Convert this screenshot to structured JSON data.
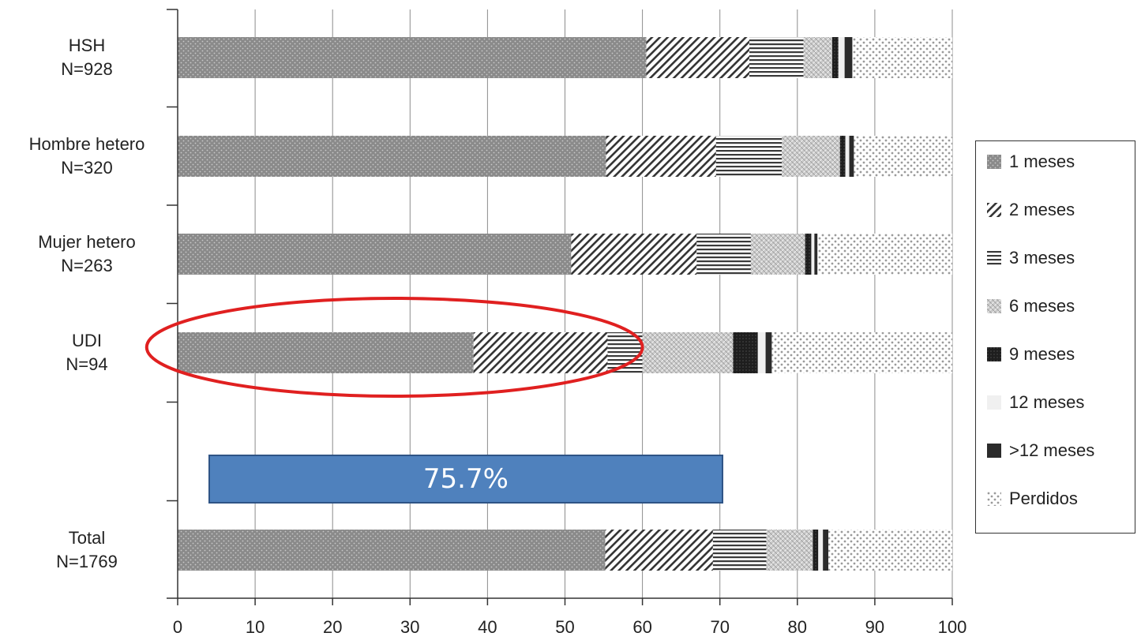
{
  "chart_data": {
    "type": "bar",
    "orientation": "horizontal",
    "stacked": true,
    "categories": [
      {
        "name": "HSH",
        "n": "N=928"
      },
      {
        "name": "Hombre hetero",
        "n": "N=320"
      },
      {
        "name": "Mujer hetero",
        "n": "N=263"
      },
      {
        "name": "UDI",
        "n": "N=94"
      },
      {
        "name": "",
        "n": ""
      },
      {
        "name": "Total",
        "n": "N=1769"
      }
    ],
    "series": [
      {
        "name": "1 meses",
        "values": [
          60.5,
          55.3,
          50.8,
          38.2,
          null,
          55.2
        ]
      },
      {
        "name": "2 meses",
        "values": [
          13.3,
          14.2,
          16.2,
          17.3,
          null,
          13.9
        ]
      },
      {
        "name": "3 meses",
        "values": [
          7.0,
          8.5,
          7.0,
          4.5,
          null,
          6.9
        ]
      },
      {
        "name": "6 meses",
        "values": [
          3.7,
          7.5,
          7.0,
          11.7,
          null,
          6.0
        ]
      },
      {
        "name": "9 meses",
        "values": [
          0.8,
          0.7,
          0.8,
          3.2,
          null,
          0.7
        ]
      },
      {
        "name": "12 meses",
        "values": [
          0.8,
          0.5,
          0.4,
          1.0,
          null,
          0.6
        ]
      },
      {
        "name": ">12 meses",
        "values": [
          1.0,
          0.6,
          0.4,
          0.8,
          null,
          0.7
        ]
      },
      {
        "name": "Perdidos",
        "values": [
          12.9,
          12.7,
          17.4,
          23.3,
          null,
          16.0
        ]
      }
    ],
    "xlim": [
      0,
      100
    ],
    "xticks": [
      0,
      10,
      20,
      30,
      40,
      50,
      60,
      70,
      80,
      90,
      100
    ],
    "grid": "vertical",
    "legend_position": "right",
    "annotations": [
      {
        "type": "ellipse",
        "color": "#e02020",
        "target": "UDI",
        "x_range": [
          -4,
          60
        ]
      },
      {
        "type": "box",
        "text": "75.7%",
        "color": "#4f81bd",
        "x_range": [
          4,
          70.4
        ]
      }
    ]
  }
}
